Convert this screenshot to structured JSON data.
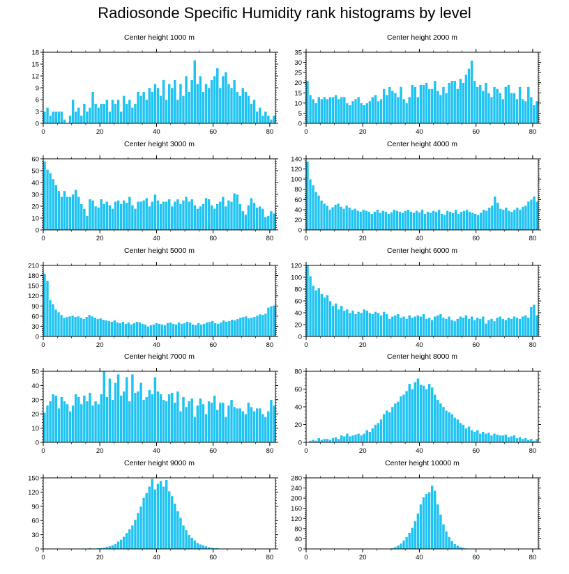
{
  "figure": {
    "title": "Radiosonde Specific Humidity rank histograms by level"
  },
  "colors": {
    "bar": "#1ec3f2",
    "bar_edge": "#ffffff",
    "axis": "#000000"
  },
  "chart_data": [
    {
      "type": "bar",
      "title": "Center height 1000 m",
      "x_ticks": [
        0,
        20,
        40,
        60,
        80
      ],
      "xlim": [
        0,
        82
      ],
      "ylim": [
        0,
        18
      ],
      "y_ticks": [
        0,
        3,
        6,
        9,
        12,
        15,
        18
      ],
      "values": [
        3,
        4,
        2,
        3,
        3,
        3,
        3,
        1,
        0,
        2,
        6,
        3,
        4,
        2,
        5,
        3,
        4,
        8,
        5,
        4,
        5,
        5,
        6,
        3,
        6,
        5,
        6,
        3,
        7,
        5,
        6,
        4,
        5,
        8,
        7,
        8,
        6,
        9,
        8,
        10,
        9,
        7,
        11,
        6,
        10,
        9,
        11,
        6,
        10,
        7,
        12,
        8,
        11,
        16,
        10,
        12,
        8,
        10,
        9,
        11,
        12,
        14,
        9,
        12,
        13,
        10,
        9,
        11,
        8,
        7,
        9,
        8,
        7,
        5,
        6,
        3,
        4,
        2,
        3,
        2,
        1,
        2
      ]
    },
    {
      "type": "bar",
      "title": "Center height 2000 m",
      "x_ticks": [
        0,
        20,
        40,
        60,
        80
      ],
      "xlim": [
        0,
        82
      ],
      "ylim": [
        0,
        35
      ],
      "y_ticks": [
        0,
        5,
        10,
        15,
        20,
        25,
        30,
        35
      ],
      "values": [
        21,
        14,
        12,
        10,
        13,
        12,
        13,
        12,
        13,
        13,
        14,
        12,
        13,
        13,
        10,
        9,
        11,
        12,
        13,
        10,
        9,
        10,
        11,
        13,
        14,
        11,
        12,
        17,
        14,
        18,
        16,
        15,
        13,
        18,
        12,
        10,
        13,
        19,
        18,
        13,
        19,
        19,
        20,
        17,
        17,
        21,
        16,
        14,
        18,
        15,
        20,
        21,
        21,
        17,
        22,
        20,
        24,
        27,
        31,
        21,
        18,
        19,
        16,
        20,
        15,
        13,
        18,
        17,
        15,
        12,
        18,
        19,
        15,
        15,
        12,
        18,
        12,
        11,
        18,
        13,
        9,
        11
      ]
    },
    {
      "type": "bar",
      "title": "Center height 3000 m",
      "x_ticks": [
        0,
        20,
        40,
        60,
        80
      ],
      "xlim": [
        0,
        82
      ],
      "ylim": [
        0,
        60
      ],
      "y_ticks": [
        0,
        10,
        20,
        30,
        40,
        50,
        60
      ],
      "values": [
        58,
        51,
        48,
        43,
        38,
        33,
        28,
        33,
        28,
        28,
        30,
        34,
        28,
        22,
        18,
        12,
        26,
        25,
        20,
        19,
        26,
        22,
        24,
        21,
        18,
        24,
        25,
        22,
        25,
        23,
        28,
        21,
        18,
        24,
        24,
        25,
        27,
        20,
        24,
        30,
        25,
        22,
        24,
        24,
        26,
        20,
        24,
        26,
        22,
        25,
        28,
        24,
        26,
        21,
        18,
        20,
        22,
        27,
        26,
        21,
        18,
        22,
        24,
        28,
        20,
        25,
        24,
        31,
        30,
        22,
        16,
        13,
        21,
        27,
        23,
        19,
        20,
        18,
        11,
        12,
        16,
        14
      ]
    },
    {
      "type": "bar",
      "title": "Center height 4000 m",
      "x_ticks": [
        0,
        20,
        40,
        60,
        80
      ],
      "xlim": [
        0,
        82
      ],
      "ylim": [
        0,
        140
      ],
      "y_ticks": [
        0,
        20,
        40,
        60,
        80,
        100,
        120,
        140
      ],
      "values": [
        135,
        100,
        88,
        75,
        68,
        58,
        52,
        48,
        40,
        45,
        50,
        52,
        46,
        42,
        48,
        44,
        40,
        42,
        38,
        36,
        40,
        38,
        36,
        32,
        36,
        40,
        34,
        38,
        36,
        32,
        35,
        40,
        38,
        36,
        34,
        38,
        40,
        36,
        34,
        38,
        35,
        40,
        32,
        36,
        34,
        38,
        36,
        40,
        32,
        30,
        38,
        36,
        34,
        40,
        32,
        36,
        38,
        40,
        36,
        34,
        32,
        30,
        34,
        40,
        38,
        44,
        48,
        66,
        54,
        42,
        40,
        44,
        38,
        36,
        40,
        44,
        40,
        46,
        48,
        56,
        60,
        66,
        56
      ]
    },
    {
      "type": "bar",
      "title": "Center height 5000 m",
      "x_ticks": [
        0,
        20,
        40,
        60,
        80
      ],
      "xlim": [
        0,
        82
      ],
      "ylim": [
        0,
        210
      ],
      "y_ticks": [
        0,
        30,
        60,
        90,
        120,
        150,
        180,
        210
      ],
      "values": [
        186,
        165,
        108,
        96,
        80,
        72,
        64,
        56,
        58,
        60,
        62,
        58,
        60,
        56,
        52,
        58,
        64,
        60,
        56,
        52,
        54,
        50,
        48,
        46,
        44,
        48,
        42,
        40,
        44,
        38,
        42,
        36,
        40,
        44,
        42,
        38,
        36,
        30,
        34,
        36,
        40,
        38,
        36,
        34,
        40,
        42,
        38,
        36,
        42,
        38,
        40,
        44,
        42,
        36,
        34,
        40,
        36,
        38,
        42,
        44,
        46,
        40,
        38,
        42,
        48,
        44,
        46,
        50,
        48,
        52,
        56,
        58,
        60,
        54,
        56,
        58,
        62,
        66,
        64,
        68,
        86,
        90,
        92
      ]
    },
    {
      "type": "bar",
      "title": "Center height 6000 m",
      "x_ticks": [
        0,
        20,
        40,
        60,
        80
      ],
      "xlim": [
        0,
        82
      ],
      "ylim": [
        0,
        120
      ],
      "y_ticks": [
        0,
        20,
        40,
        60,
        80,
        100,
        120
      ],
      "values": [
        120,
        102,
        86,
        78,
        82,
        72,
        66,
        70,
        60,
        52,
        56,
        46,
        52,
        44,
        46,
        40,
        44,
        38,
        42,
        40,
        46,
        44,
        40,
        38,
        42,
        40,
        36,
        42,
        38,
        30,
        34,
        36,
        38,
        32,
        34,
        30,
        36,
        32,
        34,
        36,
        34,
        38,
        30,
        32,
        28,
        34,
        36,
        38,
        32,
        30,
        34,
        28,
        26,
        30,
        34,
        32,
        36,
        30,
        34,
        28,
        32,
        30,
        34,
        22,
        28,
        30,
        26,
        32,
        34,
        30,
        28,
        32,
        30,
        34,
        32,
        30,
        34,
        36,
        32,
        50,
        54,
        36
      ]
    },
    {
      "type": "bar",
      "title": "Center height 7000 m",
      "x_ticks": [
        0,
        20,
        40,
        60,
        80
      ],
      "xlim": [
        0,
        82
      ],
      "ylim": [
        0,
        50
      ],
      "y_ticks": [
        0,
        10,
        20,
        30,
        40,
        50
      ],
      "values": [
        21,
        26,
        29,
        34,
        33,
        24,
        32,
        29,
        27,
        22,
        26,
        34,
        32,
        27,
        33,
        29,
        35,
        26,
        29,
        27,
        34,
        50,
        32,
        45,
        30,
        42,
        48,
        33,
        36,
        46,
        29,
        48,
        35,
        36,
        42,
        30,
        32,
        37,
        34,
        46,
        36,
        34,
        30,
        29,
        34,
        35,
        28,
        36,
        22,
        32,
        25,
        29,
        31,
        18,
        26,
        31,
        27,
        20,
        29,
        28,
        33,
        23,
        28,
        28,
        18,
        26,
        30,
        25,
        24,
        24,
        22,
        20,
        28,
        25,
        22,
        24,
        24,
        20,
        18,
        22,
        30,
        26
      ]
    },
    {
      "type": "bar",
      "title": "Center height 8000 m",
      "x_ticks": [
        0,
        20,
        40,
        60,
        80
      ],
      "xlim": [
        0,
        82
      ],
      "ylim": [
        0,
        80
      ],
      "y_ticks": [
        0,
        20,
        40,
        60,
        80
      ],
      "values": [
        0,
        2,
        3,
        2,
        5,
        3,
        4,
        4,
        3,
        5,
        6,
        4,
        8,
        7,
        10,
        7,
        8,
        9,
        10,
        8,
        10,
        14,
        12,
        16,
        20,
        22,
        26,
        32,
        36,
        34,
        40,
        44,
        46,
        52,
        54,
        58,
        66,
        60,
        68,
        72,
        65,
        64,
        60,
        66,
        62,
        54,
        48,
        44,
        40,
        36,
        34,
        32,
        28,
        26,
        22,
        20,
        16,
        18,
        14,
        12,
        14,
        10,
        12,
        10,
        11,
        8,
        10,
        9,
        8,
        8,
        9,
        6,
        7,
        8,
        5,
        6,
        4,
        5,
        3,
        4,
        2,
        4
      ]
    },
    {
      "type": "bar",
      "title": "Center height 9000 m",
      "x_ticks": [
        0,
        20,
        40,
        60,
        80
      ],
      "xlim": [
        0,
        82
      ],
      "ylim": [
        0,
        150
      ],
      "y_ticks": [
        0,
        30,
        60,
        90,
        120,
        150
      ],
      "values": [
        0,
        0,
        0,
        0,
        0,
        0,
        0,
        0,
        0,
        0,
        0,
        0,
        1,
        1,
        1,
        1,
        2,
        1,
        1,
        2,
        2,
        3,
        5,
        6,
        8,
        11,
        16,
        20,
        26,
        34,
        42,
        50,
        62,
        76,
        90,
        108,
        118,
        132,
        148,
        126,
        138,
        144,
        132,
        146,
        122,
        112,
        96,
        80,
        66,
        50,
        40,
        30,
        24,
        18,
        13,
        10,
        8,
        6,
        4,
        3,
        2,
        2,
        1,
        1,
        0,
        1,
        0,
        0,
        1,
        0,
        0,
        1,
        0,
        0,
        0,
        0,
        0,
        0,
        0,
        0,
        0,
        0
      ]
    },
    {
      "type": "bar",
      "title": "Center height 10000 m",
      "x_ticks": [
        0,
        20,
        40,
        60,
        80
      ],
      "xlim": [
        0,
        82
      ],
      "ylim": [
        0,
        280
      ],
      "y_ticks": [
        0,
        40,
        80,
        120,
        160,
        200,
        240,
        280
      ],
      "values": [
        0,
        0,
        0,
        0,
        0,
        0,
        0,
        0,
        0,
        0,
        0,
        0,
        0,
        0,
        0,
        0,
        0,
        0,
        0,
        0,
        0,
        0,
        0,
        0,
        0,
        0,
        0,
        0,
        1,
        2,
        4,
        8,
        14,
        22,
        34,
        48,
        64,
        84,
        110,
        140,
        176,
        204,
        218,
        224,
        250,
        230,
        176,
        136,
        98,
        70,
        48,
        32,
        20,
        13,
        8,
        5,
        3,
        2,
        1,
        1,
        1,
        0,
        0,
        0,
        0,
        2,
        1,
        0,
        0,
        0,
        0,
        0,
        0,
        0,
        0,
        0,
        0,
        0,
        0,
        0,
        0,
        0
      ]
    }
  ]
}
